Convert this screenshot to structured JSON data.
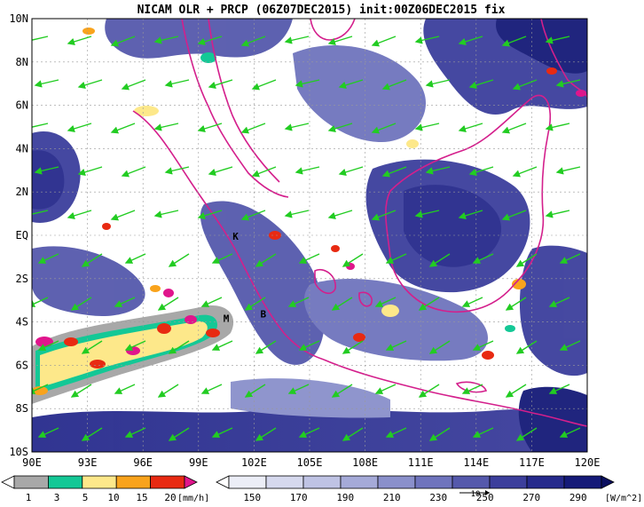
{
  "title": "NICAM OLR + PRCP (06Z07DEC2015) init:00Z06DEC2015 fix",
  "map": {
    "lat_labels": [
      "10N",
      "8N",
      "6N",
      "4N",
      "2N",
      "EQ",
      "2S",
      "4S",
      "6S",
      "8S",
      "10S"
    ],
    "lon_labels": [
      "90E",
      "93E",
      "96E",
      "99E",
      "102E",
      "105E",
      "108E",
      "111E",
      "114E",
      "117E",
      "120E"
    ],
    "lat_range": [
      -10,
      10
    ],
    "lon_range": [
      90,
      120
    ],
    "place_labels": [
      {
        "text": "K",
        "lon": 101.0,
        "lat": -0.2
      },
      {
        "text": "M",
        "lon": 100.5,
        "lat": -4.0
      },
      {
        "text": "B",
        "lon": 102.5,
        "lat": -3.8
      }
    ],
    "coast_color": "#d41f8c",
    "wind_color": "#22cc22",
    "grid": true
  },
  "prcp_colorbar": {
    "ticks": [
      "1",
      "3",
      "5",
      "10",
      "15",
      "20"
    ],
    "unit": "[mm/h]",
    "colors": [
      "#ffffff",
      "#a8a8a8",
      "#14c896",
      "#fde88a",
      "#f9a31c",
      "#e82a12",
      "#e0158c"
    ]
  },
  "olr_colorbar": {
    "ticks": [
      "150",
      "170",
      "190",
      "210",
      "230",
      "250",
      "270",
      "290"
    ],
    "unit": "[W/m^2]",
    "ref_vector_label": "10",
    "colors": [
      "#ffffff",
      "#eceef7",
      "#d6d9ee",
      "#bfc3e4",
      "#a5aad8",
      "#8a90cb",
      "#6f74bd",
      "#5559ac",
      "#3c3f9c",
      "#262a8c",
      "#151a78",
      "#0b0f60"
    ]
  }
}
